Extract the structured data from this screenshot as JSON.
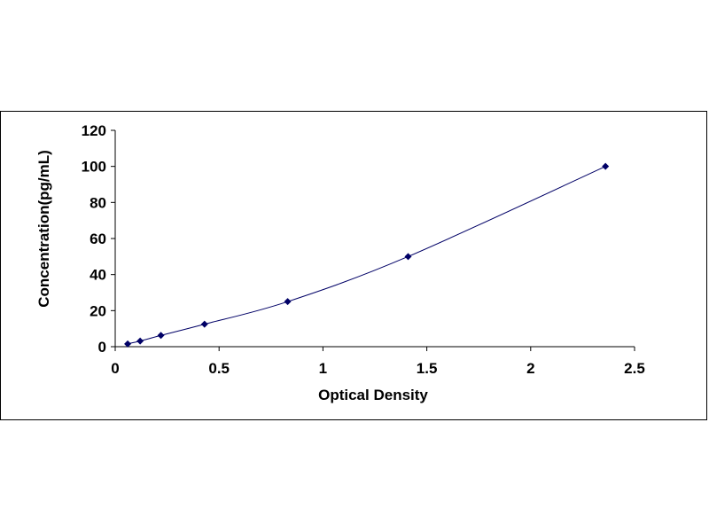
{
  "chart_data": {
    "type": "scatter",
    "xlabel": "Optical Density",
    "ylabel": "Concentration(pg/mL)",
    "xlim": [
      0,
      2.5
    ],
    "ylim": [
      0,
      120
    ],
    "xticks": [
      0,
      0.5,
      1,
      1.5,
      2,
      2.5
    ],
    "yticks": [
      0,
      20,
      40,
      60,
      80,
      100,
      120
    ],
    "xtick_labels": [
      "0",
      "0.5",
      "1",
      "1.5",
      "2",
      "2.5"
    ],
    "ytick_labels": [
      "0",
      "20",
      "40",
      "60",
      "80",
      "100",
      "120"
    ],
    "grid": false,
    "legend": "none",
    "series": [
      {
        "x": [
          0.06,
          0.12,
          0.22,
          0.43,
          0.83,
          1.41,
          2.36
        ],
        "y": [
          1.56,
          3.12,
          6.25,
          12.5,
          25,
          50,
          100
        ],
        "marker": "diamond",
        "color": "#000066",
        "fit_line": "smooth"
      }
    ]
  }
}
